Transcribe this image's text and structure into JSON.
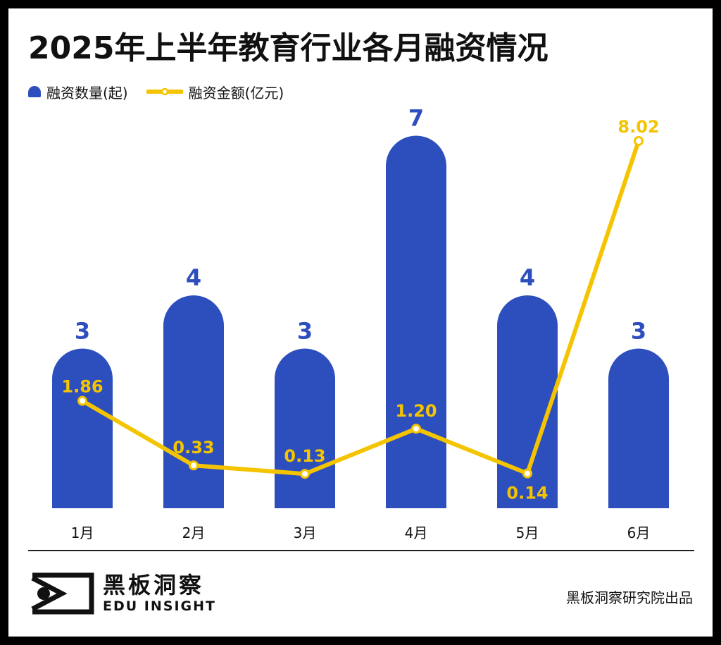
{
  "title": "2025年上半年教育行业各月融资情况",
  "legend": {
    "bar_label": "融资数量(起)",
    "line_label": "融资金额(亿元)"
  },
  "colors": {
    "bar": "#2d4fbd",
    "line": "#f5c400",
    "background": "#ffffff",
    "frame": "#000000"
  },
  "chart_data": {
    "type": "bar",
    "categories": [
      "1月",
      "2月",
      "3月",
      "4月",
      "5月",
      "6月"
    ],
    "series": [
      {
        "name": "融资数量(起)",
        "type": "bar",
        "values": [
          3,
          4,
          3,
          7,
          4,
          3
        ],
        "labels": [
          "3",
          "4",
          "3",
          "7",
          "4",
          "3"
        ]
      },
      {
        "name": "融资金额(亿元)",
        "type": "line",
        "values": [
          1.86,
          0.33,
          0.13,
          1.2,
          0.14,
          8.02
        ],
        "labels": [
          "1.86",
          "0.33",
          "0.13",
          "1.20",
          "0.14",
          "8.02"
        ]
      }
    ],
    "title": "2025年上半年教育行业各月融资情况",
    "xlabel": "",
    "ylabel": "",
    "legend_position": "top-left",
    "grid": false
  },
  "footer": {
    "brand_cn": "黑板洞察",
    "brand_en": "EDU INSIGHT",
    "credit": "黑板洞察研究院出品"
  }
}
